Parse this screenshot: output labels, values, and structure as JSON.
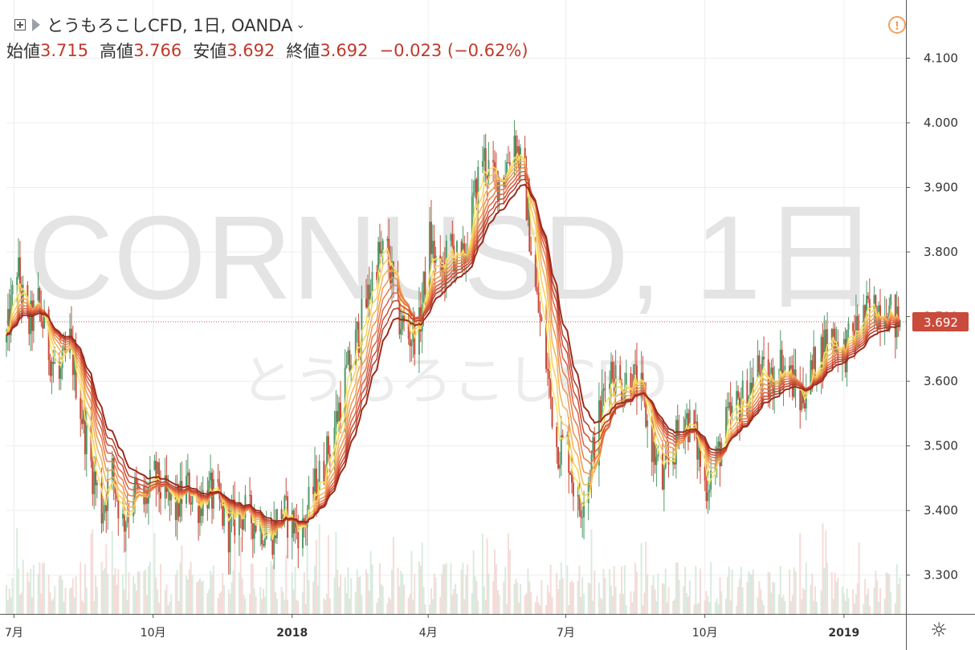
{
  "header": {
    "symbol_title": "とうもろこしCFD, 1日, OANDA",
    "ohlc": [
      {
        "label": "始値",
        "value": "3.715"
      },
      {
        "label": "高値",
        "value": "3.766"
      },
      {
        "label": "安値",
        "value": "3.692"
      },
      {
        "label": "終値",
        "value": "3.692"
      }
    ],
    "change": "−0.023 (−0.62%)"
  },
  "watermark": {
    "main": "CORNUSD, 1日",
    "sub": "とうもろこしCFD"
  },
  "colors": {
    "up": "#4f9a6a",
    "down": "#c94b3b",
    "price_label_bg": "#c94b3b",
    "ma_ribbon": [
      "#f7e463",
      "#f7cf5c",
      "#f3b256",
      "#ee9650",
      "#e87b4a",
      "#de6141",
      "#cc4a34",
      "#b63a28",
      "#9c2c1d"
    ]
  },
  "chart_data": {
    "type": "line",
    "y_ticks": [
      "4.100",
      "4.000",
      "3.900",
      "3.800",
      "3.700",
      "3.600",
      "3.500",
      "3.400",
      "3.300"
    ],
    "ylim": [
      3.24,
      4.19
    ],
    "x_ticks": [
      "7月",
      "10月",
      "2018",
      "4月",
      "7月",
      "10月",
      "2019"
    ],
    "last_price": "3.692",
    "series": [
      {
        "x": [
          "2017-06-26",
          "2017-07-03",
          "2017-07-10",
          "2017-07-17",
          "2017-07-24",
          "2017-07-31",
          "2017-08-07",
          "2017-08-14",
          "2017-08-21",
          "2017-08-28",
          "2017-09-04",
          "2017-09-11",
          "2017-09-18",
          "2017-09-25",
          "2017-10-02",
          "2017-10-09",
          "2017-10-16",
          "2017-10-23",
          "2017-10-30",
          "2017-11-06",
          "2017-11-13",
          "2017-11-20",
          "2017-11-27",
          "2017-12-04",
          "2017-12-11",
          "2017-12-18",
          "2017-12-25",
          "2018-01-01",
          "2018-01-08",
          "2018-01-15",
          "2018-01-22",
          "2018-01-29",
          "2018-02-05",
          "2018-02-12",
          "2018-02-19",
          "2018-02-26",
          "2018-03-05",
          "2018-03-12",
          "2018-03-19",
          "2018-03-26",
          "2018-04-02",
          "2018-04-09",
          "2018-04-16",
          "2018-04-23",
          "2018-04-30",
          "2018-05-07",
          "2018-05-14",
          "2018-05-21",
          "2018-05-28",
          "2018-06-04",
          "2018-06-11",
          "2018-06-18",
          "2018-06-25",
          "2018-07-02",
          "2018-07-09",
          "2018-07-16",
          "2018-07-23",
          "2018-07-30",
          "2018-08-06",
          "2018-08-13",
          "2018-08-20",
          "2018-08-27",
          "2018-09-03",
          "2018-09-10",
          "2018-09-17",
          "2018-09-24",
          "2018-10-01",
          "2018-10-08",
          "2018-10-15",
          "2018-10-22",
          "2018-10-29",
          "2018-11-05",
          "2018-11-12",
          "2018-11-19",
          "2018-11-26",
          "2018-12-03",
          "2018-12-10",
          "2018-12-17",
          "2018-12-24",
          "2018-12-31",
          "2019-01-07",
          "2019-01-14",
          "2019-01-21",
          "2019-01-28",
          "2019-02-04"
        ],
        "values": [
          3.66,
          3.78,
          3.68,
          3.72,
          3.65,
          3.6,
          3.66,
          3.56,
          3.47,
          3.4,
          3.46,
          3.38,
          3.43,
          3.41,
          3.45,
          3.42,
          3.4,
          3.44,
          3.41,
          3.43,
          3.41,
          3.37,
          3.4,
          3.39,
          3.38,
          3.36,
          3.4,
          3.38,
          3.37,
          3.43,
          3.47,
          3.53,
          3.6,
          3.66,
          3.72,
          3.79,
          3.8,
          3.7,
          3.67,
          3.68,
          3.82,
          3.76,
          3.81,
          3.77,
          3.86,
          3.95,
          3.91,
          3.92,
          3.98,
          3.9,
          3.74,
          3.63,
          3.5,
          3.5,
          3.4,
          3.45,
          3.54,
          3.63,
          3.59,
          3.61,
          3.58,
          3.5,
          3.44,
          3.49,
          3.55,
          3.52,
          3.44,
          3.47,
          3.53,
          3.56,
          3.58,
          3.62,
          3.59,
          3.63,
          3.61,
          3.57,
          3.61,
          3.65,
          3.68,
          3.64,
          3.67,
          3.7,
          3.71,
          3.72,
          3.69
        ]
      }
    ]
  }
}
